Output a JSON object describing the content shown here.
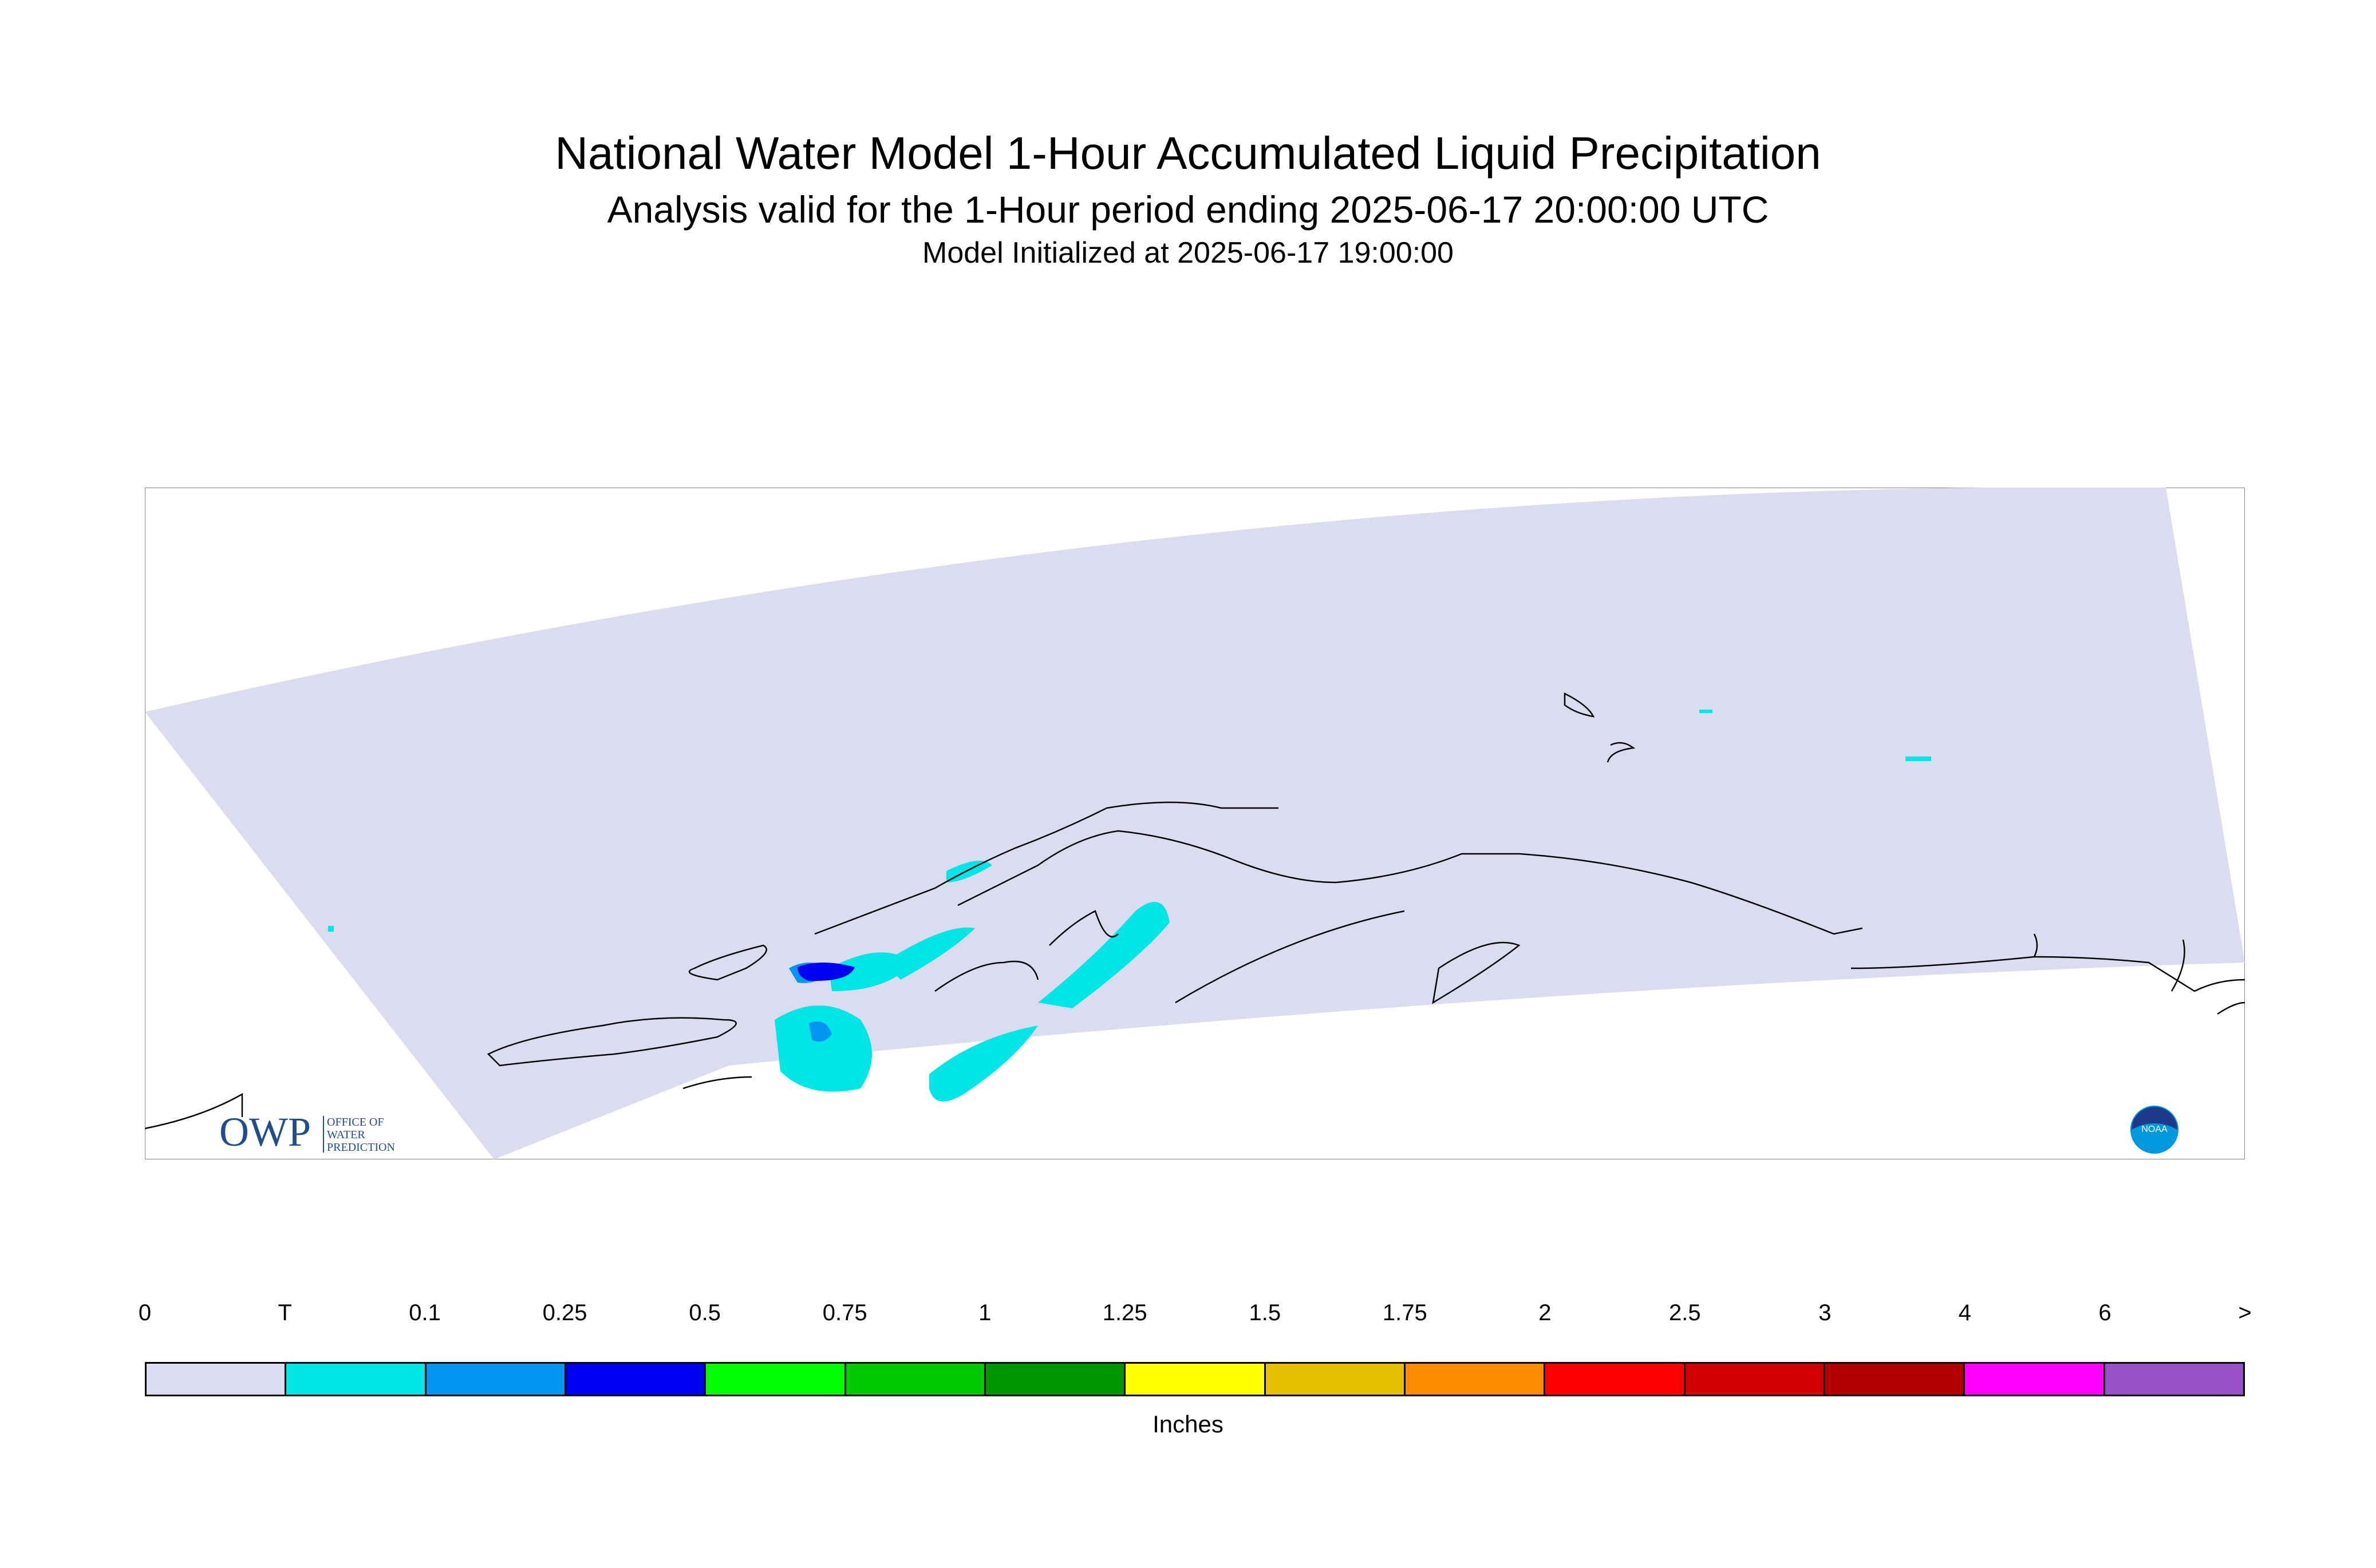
{
  "header": {
    "title": "National Water Model 1-Hour Accumulated Liquid Precipitation",
    "subtitle": "Analysis valid for the 1-Hour period ending 2025-06-17 20:00:00 UTC",
    "init": "Model Initialized at 2025-06-17 19:00:00"
  },
  "logos": {
    "owp_mark": "OWP",
    "owp_text_1": "OFFICE OF",
    "owp_text_2": "WATER",
    "owp_text_3": "PREDICTION",
    "noaa_text": "NOAA"
  },
  "legend": {
    "ticks": [
      "0",
      "T",
      "0.1",
      "0.25",
      "0.5",
      "0.75",
      "1",
      "1.25",
      "1.5",
      "1.75",
      "2",
      "2.5",
      "3",
      "4",
      "6",
      ">"
    ],
    "colors": [
      "#dcdcf0",
      "#00e6e6",
      "#0096f0",
      "#0000f0",
      "#00ff00",
      "#00c800",
      "#009600",
      "#ffff00",
      "#e6be00",
      "#ff8c00",
      "#ff0000",
      "#d20000",
      "#b40000",
      "#ff00ff",
      "#9650c8"
    ],
    "units": "Inches"
  },
  "colors": {
    "domain": "#dcdcf0",
    "coast": "#000000",
    "owp_blue": "#1f4e8c"
  }
}
